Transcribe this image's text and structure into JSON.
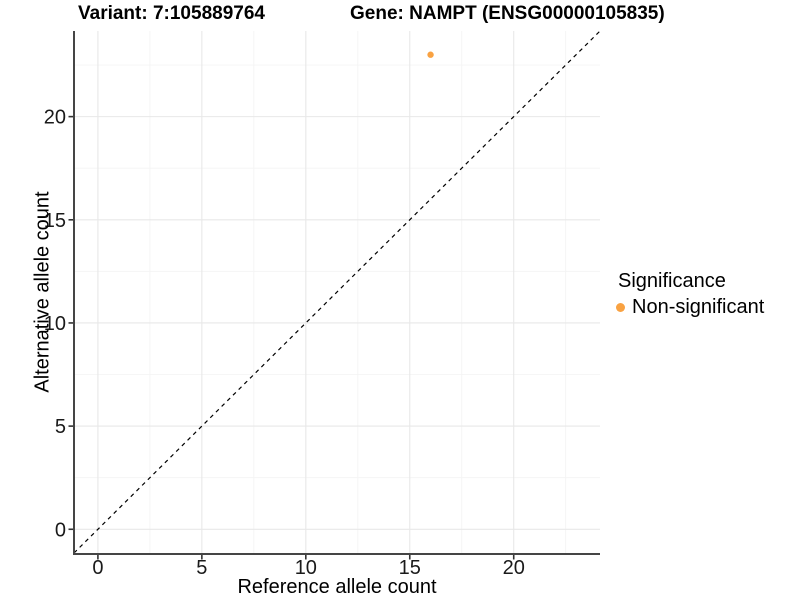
{
  "titles": {
    "variant": "Variant: 7:105889764",
    "gene": "Gene: NAMPT (ENSG00000105835)"
  },
  "axes": {
    "x_label": "Reference allele count",
    "y_label": "Alternative allele count"
  },
  "legend": {
    "title": "Significance",
    "items": [
      {
        "label": "Non-significant",
        "color": "#F9A242"
      }
    ]
  },
  "chart_data": {
    "type": "scatter",
    "title": "Variant: 7:105889764 / Gene: NAMPT (ENSG00000105835)",
    "xlabel": "Reference allele count",
    "ylabel": "Alternative allele count",
    "xlim": [
      -1.15,
      24.15
    ],
    "ylim": [
      -1.15,
      24.15
    ],
    "x_ticks": [
      0,
      5,
      10,
      15,
      20
    ],
    "y_ticks": [
      0,
      5,
      10,
      15,
      20
    ],
    "x_minor_ticks": [
      2.5,
      7.5,
      12.5,
      17.5,
      22.5
    ],
    "y_minor_ticks": [
      2.5,
      7.5,
      12.5,
      17.5,
      22.5
    ],
    "grid": true,
    "legend_position": "right",
    "series": [
      {
        "name": "Non-significant",
        "color": "#F9A242",
        "points": [
          {
            "x": 16,
            "y": 23
          }
        ]
      }
    ],
    "reference_line": {
      "slope": 1,
      "intercept": 0,
      "style": "dashed",
      "color": "#000000"
    }
  },
  "style_colors": {
    "axis_line": "#454545",
    "tick_mark": "#333333",
    "tick_label": "#1a1a1a",
    "grid_major": "#e8e8e8",
    "grid_minor": "#f4f4f4",
    "point": "#F9A242",
    "background": "#ffffff"
  }
}
